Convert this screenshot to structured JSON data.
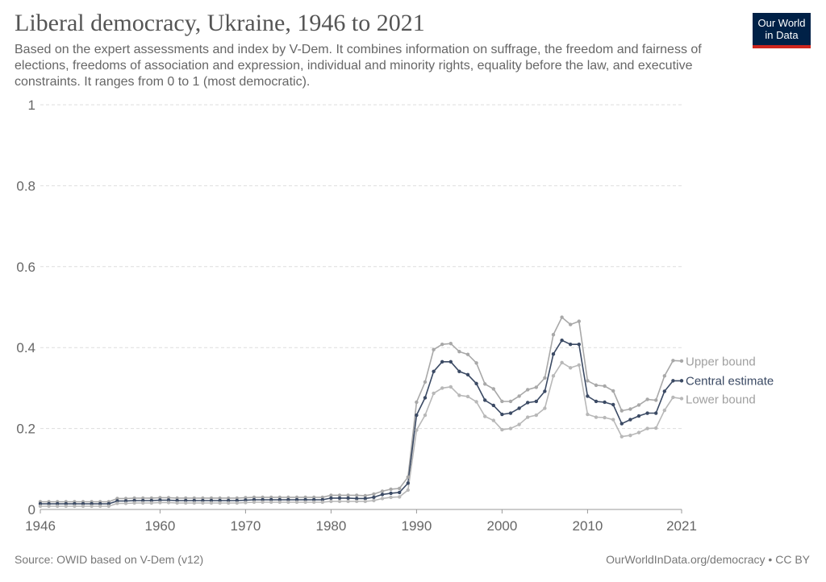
{
  "title": "Liberal democracy, Ukraine, 1946 to 2021",
  "subtitle": "Based on the expert assessments and index by V-Dem. It combines information on suffrage, the freedom and fairness of elections, freedoms of association and expression, individual and minority rights, equality before the law, and executive constraints. It ranges from 0 to 1 (most democratic).",
  "logo": {
    "line1": "Our World",
    "line2": "in Data",
    "bg_color": "#002147",
    "accent_color": "#ce261e"
  },
  "footer": {
    "source": "Source: OWID based on V-Dem (v12)",
    "license": "OurWorldInData.org/democracy • CC BY"
  },
  "chart_data": {
    "type": "line",
    "title": "Liberal democracy, Ukraine, 1946 to 2021",
    "xlabel": "",
    "ylabel": "",
    "xlim": [
      1946,
      2021
    ],
    "ylim": [
      0,
      1
    ],
    "x_ticks": [
      {
        "value": 1946,
        "label": "1946"
      },
      {
        "value": 1960,
        "label": "1960"
      },
      {
        "value": 1970,
        "label": "1970"
      },
      {
        "value": 1980,
        "label": "1980"
      },
      {
        "value": 1990,
        "label": "1990"
      },
      {
        "value": 2000,
        "label": "2000"
      },
      {
        "value": 2010,
        "label": "2010"
      },
      {
        "value": 2021,
        "label": "2021"
      }
    ],
    "y_ticks": [
      {
        "value": 0,
        "label": "0"
      },
      {
        "value": 0.2,
        "label": "0.2"
      },
      {
        "value": 0.4,
        "label": "0.4"
      },
      {
        "value": 0.6,
        "label": "0.6"
      },
      {
        "value": 0.8,
        "label": "0.8"
      },
      {
        "value": 1,
        "label": "1"
      }
    ],
    "grid": "horizontal-dashed",
    "legend": "right-end-labels",
    "series": [
      {
        "name": "Upper bound",
        "color": "#a8a8a8",
        "label_color": "#a0a0a0",
        "points": [
          [
            1946,
            0.019
          ],
          [
            1947,
            0.019
          ],
          [
            1948,
            0.019
          ],
          [
            1949,
            0.019
          ],
          [
            1950,
            0.019
          ],
          [
            1951,
            0.019
          ],
          [
            1952,
            0.019
          ],
          [
            1953,
            0.019
          ],
          [
            1954,
            0.019
          ],
          [
            1955,
            0.027
          ],
          [
            1956,
            0.027
          ],
          [
            1957,
            0.028
          ],
          [
            1958,
            0.028
          ],
          [
            1959,
            0.028
          ],
          [
            1960,
            0.029
          ],
          [
            1961,
            0.029
          ],
          [
            1962,
            0.028
          ],
          [
            1963,
            0.028
          ],
          [
            1964,
            0.028
          ],
          [
            1965,
            0.028
          ],
          [
            1966,
            0.028
          ],
          [
            1967,
            0.028
          ],
          [
            1968,
            0.028
          ],
          [
            1969,
            0.028
          ],
          [
            1970,
            0.029
          ],
          [
            1971,
            0.03
          ],
          [
            1972,
            0.03
          ],
          [
            1973,
            0.03
          ],
          [
            1974,
            0.03
          ],
          [
            1975,
            0.03
          ],
          [
            1976,
            0.03
          ],
          [
            1977,
            0.03
          ],
          [
            1978,
            0.03
          ],
          [
            1979,
            0.03
          ],
          [
            1980,
            0.035
          ],
          [
            1981,
            0.035
          ],
          [
            1982,
            0.035
          ],
          [
            1983,
            0.035
          ],
          [
            1984,
            0.034
          ],
          [
            1985,
            0.038
          ],
          [
            1986,
            0.045
          ],
          [
            1987,
            0.05
          ],
          [
            1988,
            0.052
          ],
          [
            1989,
            0.08
          ],
          [
            1990,
            0.265
          ],
          [
            1991,
            0.315
          ],
          [
            1992,
            0.395
          ],
          [
            1993,
            0.408
          ],
          [
            1994,
            0.41
          ],
          [
            1995,
            0.39
          ],
          [
            1996,
            0.383
          ],
          [
            1997,
            0.362
          ],
          [
            1998,
            0.31
          ],
          [
            1999,
            0.298
          ],
          [
            2000,
            0.267
          ],
          [
            2001,
            0.267
          ],
          [
            2002,
            0.28
          ],
          [
            2003,
            0.296
          ],
          [
            2004,
            0.302
          ],
          [
            2005,
            0.325
          ],
          [
            2006,
            0.432
          ],
          [
            2007,
            0.475
          ],
          [
            2008,
            0.457
          ],
          [
            2009,
            0.465
          ],
          [
            2010,
            0.318
          ],
          [
            2011,
            0.307
          ],
          [
            2012,
            0.305
          ],
          [
            2013,
            0.293
          ],
          [
            2014,
            0.244
          ],
          [
            2015,
            0.248
          ],
          [
            2016,
            0.258
          ],
          [
            2017,
            0.272
          ],
          [
            2018,
            0.27
          ],
          [
            2019,
            0.33
          ],
          [
            2020,
            0.368
          ],
          [
            2021,
            0.367
          ]
        ]
      },
      {
        "name": "Central estimate",
        "color": "#3b4a64",
        "label_color": "#3b4a64",
        "points": [
          [
            1946,
            0.014
          ],
          [
            1947,
            0.014
          ],
          [
            1948,
            0.014
          ],
          [
            1949,
            0.014
          ],
          [
            1950,
            0.014
          ],
          [
            1951,
            0.014
          ],
          [
            1952,
            0.014
          ],
          [
            1953,
            0.014
          ],
          [
            1954,
            0.014
          ],
          [
            1955,
            0.021
          ],
          [
            1956,
            0.021
          ],
          [
            1957,
            0.022
          ],
          [
            1958,
            0.022
          ],
          [
            1959,
            0.022
          ],
          [
            1960,
            0.023
          ],
          [
            1961,
            0.023
          ],
          [
            1962,
            0.022
          ],
          [
            1963,
            0.022
          ],
          [
            1964,
            0.022
          ],
          [
            1965,
            0.022
          ],
          [
            1966,
            0.022
          ],
          [
            1967,
            0.022
          ],
          [
            1968,
            0.022
          ],
          [
            1969,
            0.022
          ],
          [
            1970,
            0.023
          ],
          [
            1971,
            0.024
          ],
          [
            1972,
            0.024
          ],
          [
            1973,
            0.024
          ],
          [
            1974,
            0.024
          ],
          [
            1975,
            0.024
          ],
          [
            1976,
            0.024
          ],
          [
            1977,
            0.024
          ],
          [
            1978,
            0.024
          ],
          [
            1979,
            0.024
          ],
          [
            1980,
            0.028
          ],
          [
            1981,
            0.028
          ],
          [
            1982,
            0.028
          ],
          [
            1983,
            0.027
          ],
          [
            1984,
            0.027
          ],
          [
            1985,
            0.03
          ],
          [
            1986,
            0.037
          ],
          [
            1987,
            0.04
          ],
          [
            1988,
            0.042
          ],
          [
            1989,
            0.065
          ],
          [
            1990,
            0.233
          ],
          [
            1991,
            0.276
          ],
          [
            1992,
            0.341
          ],
          [
            1993,
            0.365
          ],
          [
            1994,
            0.365
          ],
          [
            1995,
            0.341
          ],
          [
            1996,
            0.333
          ],
          [
            1997,
            0.311
          ],
          [
            1998,
            0.27
          ],
          [
            1999,
            0.257
          ],
          [
            2000,
            0.235
          ],
          [
            2001,
            0.238
          ],
          [
            2002,
            0.25
          ],
          [
            2003,
            0.264
          ],
          [
            2004,
            0.267
          ],
          [
            2005,
            0.292
          ],
          [
            2006,
            0.384
          ],
          [
            2007,
            0.418
          ],
          [
            2008,
            0.408
          ],
          [
            2009,
            0.408
          ],
          [
            2010,
            0.28
          ],
          [
            2011,
            0.267
          ],
          [
            2012,
            0.265
          ],
          [
            2013,
            0.259
          ],
          [
            2014,
            0.212
          ],
          [
            2015,
            0.222
          ],
          [
            2016,
            0.231
          ],
          [
            2017,
            0.238
          ],
          [
            2018,
            0.238
          ],
          [
            2019,
            0.292
          ],
          [
            2020,
            0.318
          ],
          [
            2021,
            0.318
          ]
        ]
      },
      {
        "name": "Lower bound",
        "color": "#b8b8b8",
        "label_color": "#a0a0a0",
        "points": [
          [
            1946,
            0.008
          ],
          [
            1947,
            0.008
          ],
          [
            1948,
            0.008
          ],
          [
            1949,
            0.008
          ],
          [
            1950,
            0.008
          ],
          [
            1951,
            0.008
          ],
          [
            1952,
            0.008
          ],
          [
            1953,
            0.008
          ],
          [
            1954,
            0.008
          ],
          [
            1955,
            0.015
          ],
          [
            1956,
            0.015
          ],
          [
            1957,
            0.016
          ],
          [
            1958,
            0.016
          ],
          [
            1959,
            0.016
          ],
          [
            1960,
            0.017
          ],
          [
            1961,
            0.017
          ],
          [
            1962,
            0.016
          ],
          [
            1963,
            0.016
          ],
          [
            1964,
            0.016
          ],
          [
            1965,
            0.016
          ],
          [
            1966,
            0.016
          ],
          [
            1967,
            0.016
          ],
          [
            1968,
            0.016
          ],
          [
            1969,
            0.016
          ],
          [
            1970,
            0.017
          ],
          [
            1971,
            0.018
          ],
          [
            1972,
            0.018
          ],
          [
            1973,
            0.018
          ],
          [
            1974,
            0.018
          ],
          [
            1975,
            0.018
          ],
          [
            1976,
            0.018
          ],
          [
            1977,
            0.018
          ],
          [
            1978,
            0.018
          ],
          [
            1979,
            0.018
          ],
          [
            1980,
            0.02
          ],
          [
            1981,
            0.02
          ],
          [
            1982,
            0.02
          ],
          [
            1983,
            0.02
          ],
          [
            1984,
            0.02
          ],
          [
            1985,
            0.022
          ],
          [
            1986,
            0.027
          ],
          [
            1987,
            0.03
          ],
          [
            1988,
            0.031
          ],
          [
            1989,
            0.048
          ],
          [
            1990,
            0.196
          ],
          [
            1991,
            0.233
          ],
          [
            1992,
            0.287
          ],
          [
            1993,
            0.3
          ],
          [
            1994,
            0.303
          ],
          [
            1995,
            0.282
          ],
          [
            1996,
            0.279
          ],
          [
            1997,
            0.266
          ],
          [
            1998,
            0.23
          ],
          [
            1999,
            0.22
          ],
          [
            2000,
            0.197
          ],
          [
            2001,
            0.2
          ],
          [
            2002,
            0.21
          ],
          [
            2003,
            0.228
          ],
          [
            2004,
            0.233
          ],
          [
            2005,
            0.25
          ],
          [
            2006,
            0.33
          ],
          [
            2007,
            0.363
          ],
          [
            2008,
            0.35
          ],
          [
            2009,
            0.357
          ],
          [
            2010,
            0.235
          ],
          [
            2011,
            0.228
          ],
          [
            2012,
            0.227
          ],
          [
            2013,
            0.222
          ],
          [
            2014,
            0.18
          ],
          [
            2015,
            0.183
          ],
          [
            2016,
            0.19
          ],
          [
            2017,
            0.2
          ],
          [
            2018,
            0.201
          ],
          [
            2019,
            0.245
          ],
          [
            2020,
            0.277
          ],
          [
            2021,
            0.274
          ]
        ]
      }
    ]
  }
}
